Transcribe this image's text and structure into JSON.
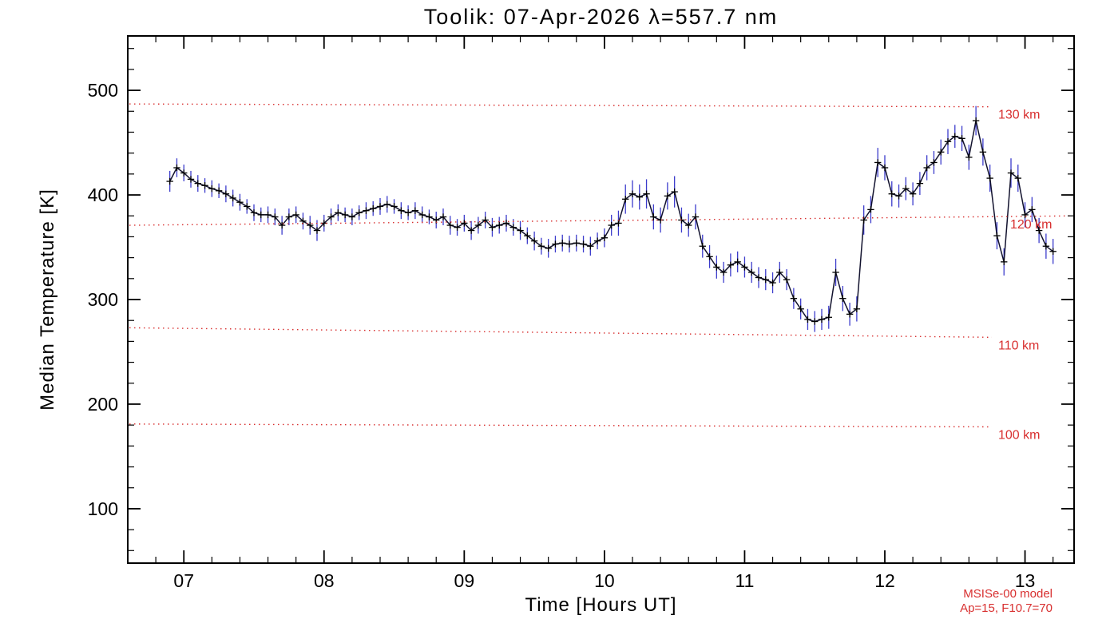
{
  "chart_data": {
    "type": "line",
    "title": "Toolik: 07-Apr-2026 λ=557.7 nm",
    "xlabel": "Time [Hours UT]",
    "ylabel": "Median Temperature [K]",
    "xlim": [
      6.6,
      13.35
    ],
    "ylim": [
      48,
      552
    ],
    "grid": false,
    "legend_position": "none",
    "x_ticks": {
      "major": [
        7,
        8,
        9,
        10,
        11,
        12,
        13
      ],
      "labels": [
        "07",
        "08",
        "09",
        "10",
        "11",
        "12",
        "13"
      ],
      "minor_step": 0.2
    },
    "y_ticks": {
      "major": [
        100,
        200,
        300,
        400,
        500
      ],
      "labels": [
        "100",
        "200",
        "300",
        "400",
        "500"
      ],
      "minor_step": 20
    },
    "series": {
      "name": "median-temperature-with-error-bars",
      "points": [
        [
          6.9,
          413,
          10
        ],
        [
          6.95,
          426,
          9
        ],
        [
          7.0,
          421,
          8
        ],
        [
          7.05,
          415,
          8
        ],
        [
          7.1,
          411,
          8
        ],
        [
          7.15,
          409,
          7
        ],
        [
          7.2,
          406,
          8
        ],
        [
          7.25,
          404,
          7
        ],
        [
          7.3,
          401,
          8
        ],
        [
          7.35,
          397,
          8
        ],
        [
          7.4,
          393,
          8
        ],
        [
          7.45,
          389,
          7
        ],
        [
          7.5,
          383,
          8
        ],
        [
          7.55,
          381,
          7
        ],
        [
          7.6,
          381,
          8
        ],
        [
          7.65,
          379,
          8
        ],
        [
          7.7,
          371,
          9
        ],
        [
          7.75,
          379,
          8
        ],
        [
          7.8,
          381,
          8
        ],
        [
          7.85,
          375,
          8
        ],
        [
          7.9,
          371,
          9
        ],
        [
          7.95,
          366,
          10
        ],
        [
          8.0,
          373,
          8
        ],
        [
          8.05,
          379,
          8
        ],
        [
          8.1,
          383,
          8
        ],
        [
          8.15,
          381,
          7
        ],
        [
          8.2,
          379,
          8
        ],
        [
          8.25,
          383,
          7
        ],
        [
          8.3,
          385,
          8
        ],
        [
          8.35,
          387,
          7
        ],
        [
          8.4,
          389,
          8
        ],
        [
          8.45,
          391,
          8
        ],
        [
          8.5,
          389,
          7
        ],
        [
          8.55,
          385,
          8
        ],
        [
          8.6,
          383,
          7
        ],
        [
          8.65,
          385,
          8
        ],
        [
          8.7,
          381,
          8
        ],
        [
          8.75,
          379,
          7
        ],
        [
          8.8,
          376,
          8
        ],
        [
          8.85,
          379,
          8
        ],
        [
          8.9,
          371,
          9
        ],
        [
          8.95,
          369,
          8
        ],
        [
          9.0,
          373,
          8
        ],
        [
          9.05,
          366,
          9
        ],
        [
          9.1,
          371,
          8
        ],
        [
          9.15,
          376,
          8
        ],
        [
          9.2,
          369,
          9
        ],
        [
          9.25,
          371,
          8
        ],
        [
          9.3,
          373,
          8
        ],
        [
          9.35,
          369,
          8
        ],
        [
          9.4,
          366,
          9
        ],
        [
          9.45,
          361,
          8
        ],
        [
          9.5,
          356,
          9
        ],
        [
          9.55,
          351,
          8
        ],
        [
          9.6,
          349,
          9
        ],
        [
          9.65,
          353,
          8
        ],
        [
          9.7,
          354,
          8
        ],
        [
          9.75,
          353,
          8
        ],
        [
          9.8,
          354,
          8
        ],
        [
          9.85,
          353,
          8
        ],
        [
          9.9,
          351,
          9
        ],
        [
          9.95,
          356,
          8
        ],
        [
          10.0,
          359,
          9
        ],
        [
          10.05,
          371,
          10
        ],
        [
          10.1,
          373,
          12
        ],
        [
          10.15,
          396,
          14
        ],
        [
          10.2,
          401,
          13
        ],
        [
          10.25,
          398,
          12
        ],
        [
          10.3,
          401,
          14
        ],
        [
          10.35,
          379,
          12
        ],
        [
          10.4,
          376,
          12
        ],
        [
          10.45,
          399,
          13
        ],
        [
          10.5,
          403,
          15
        ],
        [
          10.55,
          376,
          12
        ],
        [
          10.6,
          371,
          11
        ],
        [
          10.65,
          379,
          12
        ],
        [
          10.7,
          351,
          11
        ],
        [
          10.75,
          341,
          11
        ],
        [
          10.8,
          331,
          11
        ],
        [
          10.85,
          326,
          10
        ],
        [
          10.9,
          333,
          11
        ],
        [
          10.95,
          336,
          10
        ],
        [
          11.0,
          331,
          10
        ],
        [
          11.05,
          326,
          10
        ],
        [
          11.1,
          321,
          10
        ],
        [
          11.15,
          319,
          10
        ],
        [
          11.2,
          316,
          10
        ],
        [
          11.25,
          326,
          10
        ],
        [
          11.3,
          319,
          10
        ],
        [
          11.35,
          301,
          10
        ],
        [
          11.4,
          291,
          10
        ],
        [
          11.45,
          281,
          10
        ],
        [
          11.5,
          279,
          10
        ],
        [
          11.55,
          281,
          10
        ],
        [
          11.6,
          283,
          11
        ],
        [
          11.65,
          326,
          13
        ],
        [
          11.7,
          301,
          12
        ],
        [
          11.75,
          286,
          11
        ],
        [
          11.8,
          291,
          12
        ],
        [
          11.85,
          376,
          14
        ],
        [
          11.9,
          386,
          13
        ],
        [
          11.95,
          431,
          14
        ],
        [
          12.0,
          426,
          12
        ],
        [
          12.05,
          401,
          12
        ],
        [
          12.1,
          399,
          11
        ],
        [
          12.15,
          406,
          11
        ],
        [
          12.2,
          401,
          11
        ],
        [
          12.25,
          411,
          11
        ],
        [
          12.3,
          426,
          12
        ],
        [
          12.35,
          431,
          11
        ],
        [
          12.4,
          441,
          12
        ],
        [
          12.45,
          451,
          12
        ],
        [
          12.5,
          456,
          11
        ],
        [
          12.55,
          454,
          12
        ],
        [
          12.6,
          436,
          12
        ],
        [
          12.65,
          471,
          14
        ],
        [
          12.7,
          441,
          13
        ],
        [
          12.75,
          416,
          13
        ],
        [
          12.8,
          361,
          13
        ],
        [
          12.85,
          336,
          13
        ],
        [
          12.9,
          421,
          14
        ],
        [
          12.95,
          416,
          13
        ],
        [
          13.0,
          381,
          12
        ],
        [
          13.05,
          386,
          12
        ],
        [
          13.1,
          366,
          12
        ],
        [
          13.15,
          351,
          12
        ],
        [
          13.2,
          346,
          12
        ]
      ]
    },
    "model_lines": [
      {
        "label": "130 km",
        "start": 487,
        "end": 484,
        "full_width": false
      },
      {
        "label": "120 km",
        "start": 371,
        "end": 380,
        "full_width": true
      },
      {
        "label": "110 km",
        "start": 273,
        "end": 263,
        "full_width": false
      },
      {
        "label": "100 km",
        "start": 181,
        "end": 178,
        "full_width": false
      }
    ],
    "annotation": {
      "line1": "MSISe-00 model",
      "line2": "Ap=15, F10.7=70"
    },
    "colors": {
      "axis": "#000000",
      "data_line": "#12122e",
      "marker": "#000000",
      "error_bar": "#3c3ccc",
      "model": "#d83030"
    }
  }
}
